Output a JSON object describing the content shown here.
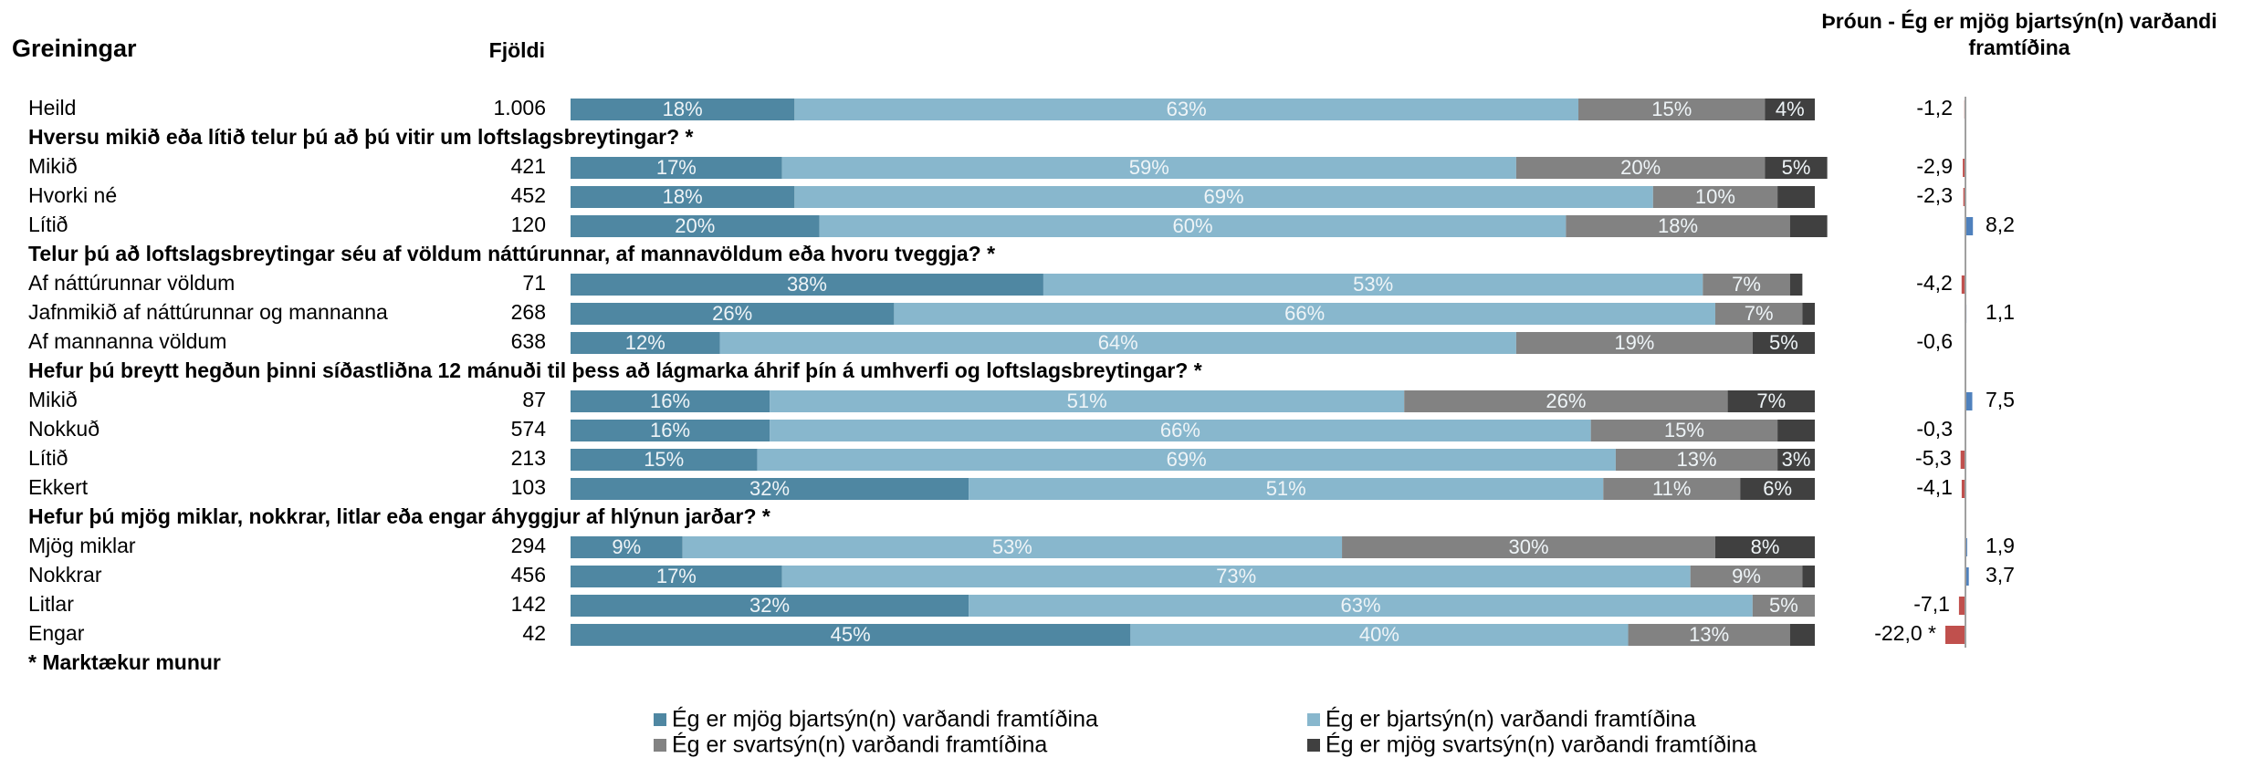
{
  "chart_data": {
    "type": "bar",
    "orientation": "horizontal",
    "stacked": true,
    "title": "Greiningar",
    "count_title": "Fjöldi",
    "footnote": "* Marktækur munur",
    "categories": [
      "Heild",
      "Mikið",
      "Hvorki né",
      "Lítið",
      "Af náttúrunnar völdum",
      "Jafnmikið af náttúrunnar og mannanna",
      "Af mannanna völdum",
      "Mikið",
      "Nokkuð",
      "Lítið",
      "Ekkert",
      "Mjög miklar",
      "Nokkrar",
      "Litlar",
      "Engar"
    ],
    "headings": [
      {
        "before": 1,
        "text": "Hversu mikið eða lítið telur þú að þú vitir um loftslagsbreytingar? *"
      },
      {
        "before": 4,
        "text": "Telur þú að loftslagsbreytingar séu af völdum náttúrunnar, af mannavöldum eða hvoru tveggja? *"
      },
      {
        "before": 7,
        "text": "Hefur þú breytt hegðun þinni síðastliðna 12 mánuði til þess að lágmarka áhrif þín á umhverfi og loftslagsbreytingar? *"
      },
      {
        "before": 11,
        "text": "Hefur þú mjög miklar, nokkrar, litlar eða engar áhyggjur af hlýnun jarðar? *"
      }
    ],
    "counts": [
      {
        "value": 1006,
        "label": "1.006"
      },
      421,
      452,
      120,
      71,
      268,
      638,
      87,
      574,
      213,
      103,
      294,
      456,
      142,
      42
    ],
    "series": [
      {
        "name": "Ég er mjög bjartsýn(n) varðandi framtíðina",
        "color": "#4f87a2",
        "values": [
          18,
          17,
          18,
          20,
          38,
          26,
          12,
          16,
          16,
          15,
          32,
          9,
          17,
          32,
          45
        ],
        "value_labels": [
          "18%",
          "17%",
          "18%",
          "20%",
          "38%",
          "26%",
          "12%",
          "16%",
          "16%",
          "15%",
          "32%",
          "9%",
          "17%",
          "32%",
          "45%"
        ]
      },
      {
        "name": "Ég er bjartsýn(n) varðandi framtíðina",
        "color": "#88b7cd",
        "values": [
          63,
          59,
          69,
          60,
          53,
          66,
          64,
          51,
          66,
          69,
          51,
          53,
          73,
          63,
          40
        ],
        "value_labels": [
          "63%",
          "59%",
          "69%",
          "60%",
          "53%",
          "66%",
          "64%",
          "51%",
          "66%",
          "69%",
          "51%",
          "53%",
          "73%",
          "63%",
          "40%"
        ]
      },
      {
        "name": "Ég er svartsýn(n) varðandi framtíðina",
        "color": "#828282",
        "values": [
          15,
          20,
          10,
          18,
          7,
          7,
          19,
          26,
          15,
          13,
          11,
          30,
          9,
          5,
          13
        ],
        "value_labels": [
          "15%",
          "20%",
          "10%",
          "18%",
          "7%",
          "7%",
          "19%",
          "26%",
          "15%",
          "13%",
          "11%",
          "30%",
          "9%",
          "5%",
          "13%"
        ]
      },
      {
        "name": "Ég er mjög svartsýn(n) varðandi framtíðina",
        "color": "#404040",
        "values": [
          4,
          5,
          3,
          3,
          1,
          1,
          5,
          7,
          3,
          3,
          6,
          8,
          1,
          0,
          2
        ],
        "value_labels": [
          "4%",
          "5%",
          null,
          null,
          null,
          null,
          "5%",
          "7%",
          null,
          "3%",
          "6%",
          "8%",
          null,
          null,
          null
        ]
      }
    ],
    "xlim": [
      0,
      100
    ],
    "trend": {
      "title": [
        "Þróun - Ég er mjög bjartsýn(n)  varðandi",
        "framtíðina"
      ],
      "values": [
        -1.2,
        -2.9,
        -2.3,
        8.2,
        -4.2,
        1.1,
        -0.6,
        7.5,
        -0.3,
        -5.3,
        -4.1,
        1.9,
        3.7,
        -7.1,
        -22.0
      ],
      "value_labels": [
        "-1,2",
        "-2,9",
        "-2,3",
        "8,2",
        "-4,2",
        "1,1",
        "-0,6",
        "7,5",
        "-0,3",
        "-5,3",
        "-4,1",
        "1,9",
        "3,7",
        "-7,1",
        "-22,0 *"
      ],
      "colors": {
        "negative": "#c0504d",
        "positive": "#4f81bd"
      }
    }
  }
}
